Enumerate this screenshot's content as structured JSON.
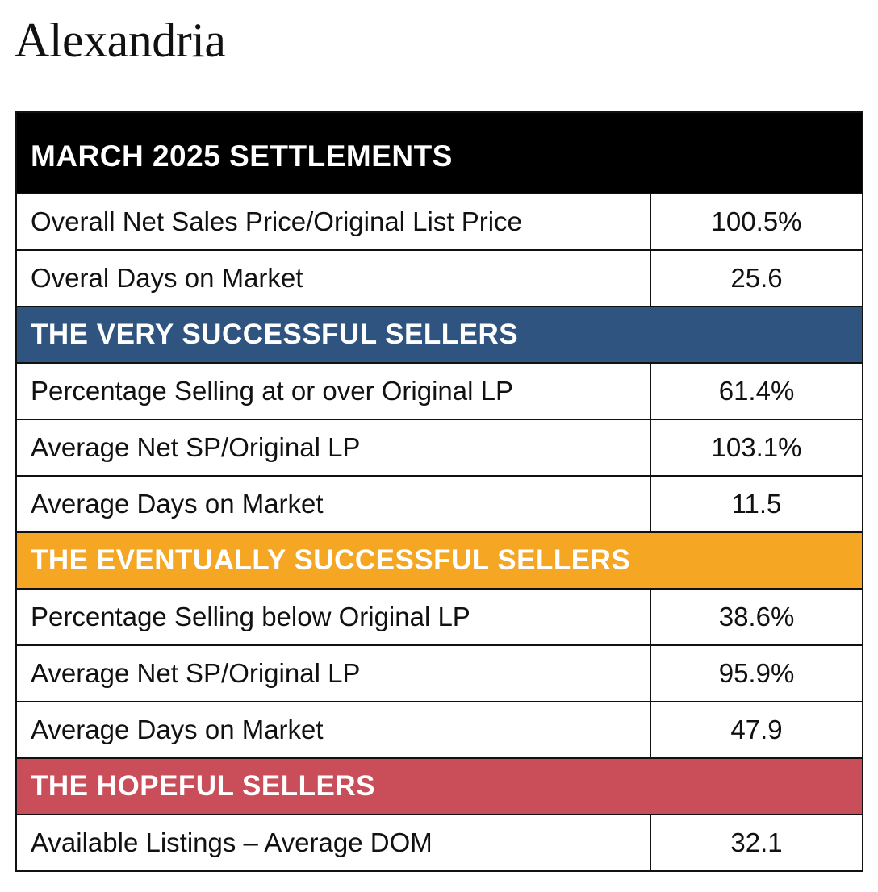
{
  "title": "Alexandria",
  "colors": {
    "section_1": "#000000",
    "section_2": "#2f5480",
    "section_3": "#f5a623",
    "section_4": "#c94e5a"
  },
  "sections": [
    {
      "heading": "MARCH 2025 SETTLEMENTS",
      "rows": [
        {
          "label": "Overall Net Sales Price/Original List Price",
          "value": "100.5%"
        },
        {
          "label": "Overal Days on Market",
          "value": "25.6"
        }
      ]
    },
    {
      "heading": "THE VERY SUCCESSFUL SELLERS",
      "rows": [
        {
          "label": "Percentage Selling at or over Original LP",
          "value": "61.4%"
        },
        {
          "label": "Average Net SP/Original LP",
          "value": "103.1%"
        },
        {
          "label": "Average Days on Market",
          "value": "11.5"
        }
      ]
    },
    {
      "heading": "THE EVENTUALLY SUCCESSFUL SELLERS",
      "rows": [
        {
          "label": "Percentage Selling below Original LP",
          "value": "38.6%"
        },
        {
          "label": "Average Net SP/Original LP",
          "value": "95.9%"
        },
        {
          "label": "Average Days on Market",
          "value": "47.9"
        }
      ]
    },
    {
      "heading": "THE HOPEFUL SELLERS",
      "rows": [
        {
          "label": "Available Listings – Average DOM",
          "value": "32.1"
        }
      ]
    }
  ]
}
